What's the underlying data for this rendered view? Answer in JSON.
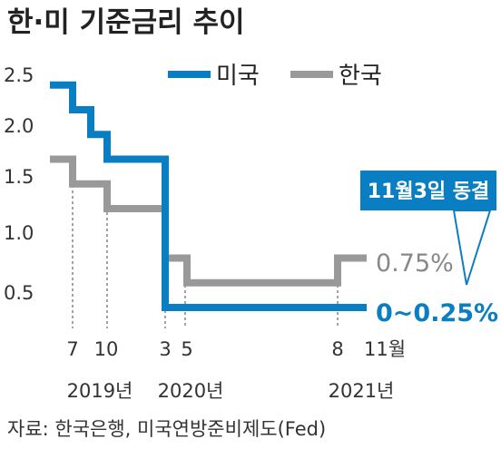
{
  "chart_data": {
    "type": "line",
    "title": "한·미 기준금리 추이",
    "source": "자료: 한국은행, 미국연방준비제도(Fed)",
    "ylim": [
      0,
      2.5
    ],
    "y_ticks": [
      "2.5",
      "2.0",
      "1.5",
      "1.0",
      "0.5"
    ],
    "legend": {
      "placement": "top-right"
    },
    "colors": {
      "us": "#0a7ec2",
      "kr": "#999999",
      "callout_bg": "#0a7ec2",
      "callout_text": "#ffffff"
    },
    "x_month_labels": [
      "7",
      "10",
      "3",
      "5",
      "8",
      "11월"
    ],
    "x_year_labels": [
      "2019년",
      "2020년",
      "2021년"
    ],
    "series": [
      {
        "name": "미국",
        "key": "us",
        "steps": [
          {
            "date": "2019-01",
            "value": 2.5
          },
          {
            "date": "2019-07",
            "value": 2.25
          },
          {
            "date": "2019-09",
            "value": 2.0
          },
          {
            "date": "2019-10",
            "value": 1.75
          },
          {
            "date": "2020-03",
            "value": 1.25
          },
          {
            "date": "2020-03",
            "value": 0.25
          },
          {
            "date": "2021-11",
            "value": 0.25
          }
        ],
        "end_label": "0~0.25%"
      },
      {
        "name": "한국",
        "key": "kr",
        "steps": [
          {
            "date": "2019-01",
            "value": 1.75
          },
          {
            "date": "2019-07",
            "value": 1.5
          },
          {
            "date": "2019-10",
            "value": 1.25
          },
          {
            "date": "2020-03",
            "value": 0.75
          },
          {
            "date": "2020-05",
            "value": 0.5
          },
          {
            "date": "2021-08",
            "value": 0.75
          },
          {
            "date": "2021-11",
            "value": 0.75
          }
        ],
        "end_label": "0.75%"
      }
    ],
    "annotation": "11월3일 동결"
  }
}
